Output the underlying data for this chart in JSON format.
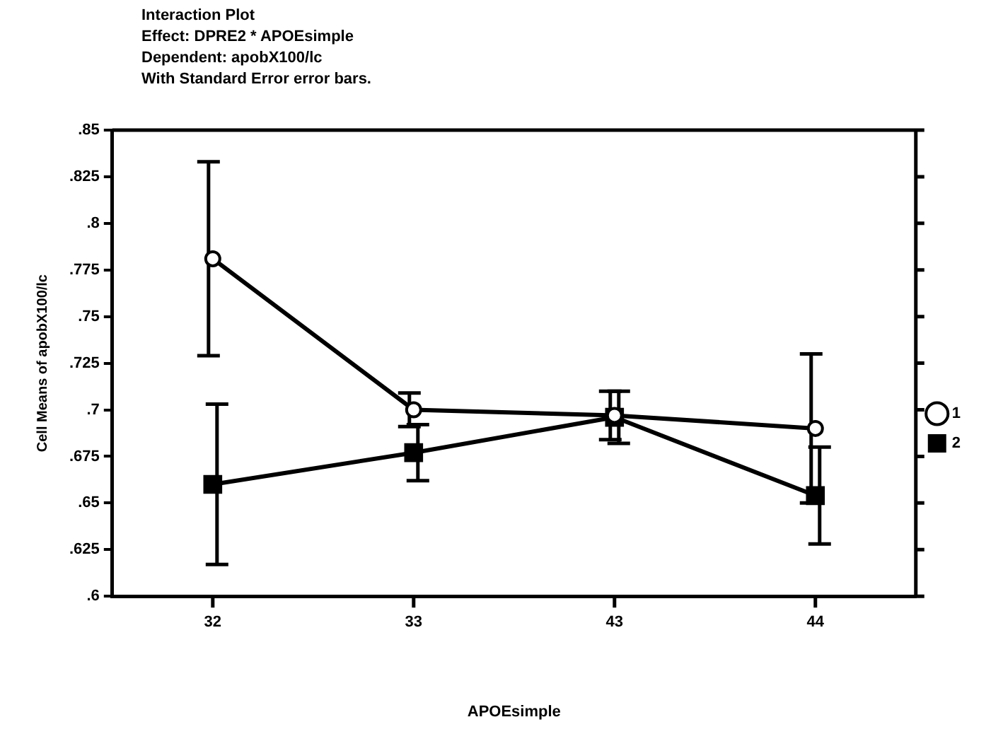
{
  "chart_data": {
    "type": "line",
    "title": "Interaction Plot",
    "subtitle": "Effect: DPRE2 * APOEsimple\nDependent: apobX100/lc\nWith Standard Error error bars.",
    "xlabel": "APOEsimple",
    "ylabel": "Cell Means of apobX100/lc",
    "categories": [
      "32",
      "33",
      "43",
      "44"
    ],
    "series": [
      {
        "name": "1",
        "color": "#000000",
        "marker": "circle",
        "values": [
          0.781,
          0.7,
          0.697,
          0.69
        ],
        "errors": [
          0.052,
          0.009,
          0.013,
          0.04
        ]
      },
      {
        "name": "2",
        "color": "#000000",
        "marker": "square",
        "values": [
          0.66,
          0.677,
          0.696,
          0.654
        ],
        "errors": [
          0.043,
          0.015,
          0.014,
          0.026
        ]
      }
    ],
    "ylim": [
      0.6,
      0.85
    ],
    "yticks": [
      {
        "value": 0.6,
        "label": ".6"
      },
      {
        "value": 0.625,
        "label": ".625"
      },
      {
        "value": 0.65,
        "label": ".65"
      },
      {
        "value": 0.675,
        "label": ".675"
      },
      {
        "value": 0.7,
        "label": ".7"
      },
      {
        "value": 0.725,
        "label": ".725"
      },
      {
        "value": 0.75,
        "label": ".75"
      },
      {
        "value": 0.775,
        "label": ".775"
      },
      {
        "value": 0.8,
        "label": ".8"
      },
      {
        "value": 0.825,
        "label": ".825"
      },
      {
        "value": 0.85,
        "label": ".85"
      }
    ],
    "grid": false,
    "legend": "right"
  }
}
